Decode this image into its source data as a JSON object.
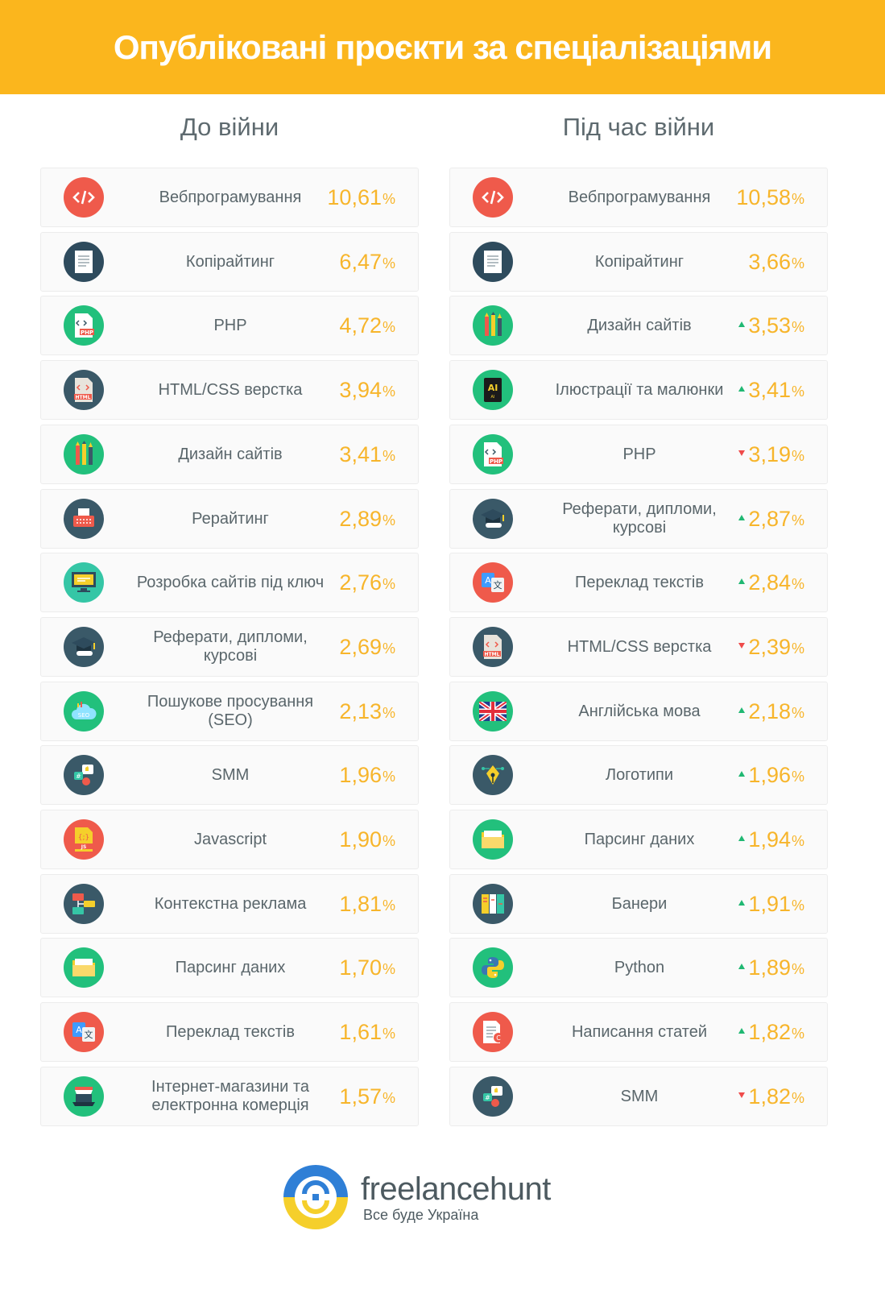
{
  "header": {
    "title": "Опубліковані проєкти за спеціалізаціями"
  },
  "colors": {
    "header_bg": "#fbb61d",
    "value": "#f7b52b",
    "up": "#1fb872",
    "down": "#ef4a4a"
  },
  "chart_data": {
    "type": "table",
    "unit": "%",
    "columns": [
      {
        "title": "До війни",
        "rows": [
          {
            "label": "Вебпрограмування",
            "value": "10,61",
            "icon": "code-icon",
            "icon_bg": "#ef5a4b"
          },
          {
            "label": "Копірайтинг",
            "value": "6,47",
            "icon": "document-icon",
            "icon_bg": "#2e4b5d"
          },
          {
            "label": "PHP",
            "value": "4,72",
            "icon": "php-file-icon",
            "icon_bg": "#22c07c"
          },
          {
            "label": "HTML/CSS верстка",
            "value": "3,94",
            "icon": "html-file-icon",
            "icon_bg": "#3a5968"
          },
          {
            "label": "Дизайн сайтів",
            "value": "3,41",
            "icon": "pencils-icon",
            "icon_bg": "#22c07c"
          },
          {
            "label": "Рерайтинг",
            "value": "2,89",
            "icon": "typewriter-icon",
            "icon_bg": "#3a5968"
          },
          {
            "label": "Розробка сайтів під ключ",
            "value": "2,76",
            "icon": "monitor-icon",
            "icon_bg": "#35c6a6"
          },
          {
            "label": "Реферати, дипломи, курсові",
            "value": "2,69",
            "icon": "graduation-cap-icon",
            "icon_bg": "#3a5968"
          },
          {
            "label": "Пошукове просування (SEO)",
            "value": "2,13",
            "icon": "seo-cloud-icon",
            "icon_bg": "#22c07c"
          },
          {
            "label": "SMM",
            "value": "1,96",
            "icon": "social-media-icon",
            "icon_bg": "#3a5968"
          },
          {
            "label": "Javascript",
            "value": "1,90",
            "icon": "js-file-icon",
            "icon_bg": "#ef5a4b"
          },
          {
            "label": "Контекстна реклама",
            "value": "1,81",
            "icon": "ads-icon",
            "icon_bg": "#3a5968"
          },
          {
            "label": "Парсинг даних",
            "value": "1,70",
            "icon": "folder-icon",
            "icon_bg": "#22c07c"
          },
          {
            "label": "Переклад текстів",
            "value": "1,61",
            "icon": "translate-icon",
            "icon_bg": "#ef5a4b"
          },
          {
            "label": "Інтернет-магазини та електронна комерція",
            "value": "1,57",
            "icon": "shop-icon",
            "icon_bg": "#22c07c"
          }
        ]
      },
      {
        "title": "Під час війни",
        "rows": [
          {
            "label": "Вебпрограмування",
            "value": "10,58",
            "trend": "",
            "icon": "code-icon",
            "icon_bg": "#ef5a4b"
          },
          {
            "label": "Копірайтинг",
            "value": "3,66",
            "trend": "",
            "icon": "document-icon",
            "icon_bg": "#2e4b5d"
          },
          {
            "label": "Дизайн сайтів",
            "value": "3,53",
            "trend": "up",
            "icon": "pencils-icon",
            "icon_bg": "#22c07c"
          },
          {
            "label": "Ілюстрації та малюнки",
            "value": "3,41",
            "trend": "up",
            "icon": "ai-file-icon",
            "icon_bg": "#22c07c"
          },
          {
            "label": "PHP",
            "value": "3,19",
            "trend": "down",
            "icon": "php-file-icon",
            "icon_bg": "#22c07c"
          },
          {
            "label": "Реферати, дипломи, курсові",
            "value": "2,87",
            "trend": "up",
            "icon": "graduation-cap-icon",
            "icon_bg": "#3a5968"
          },
          {
            "label": "Переклад текстів",
            "value": "2,84",
            "trend": "up",
            "icon": "translate-icon",
            "icon_bg": "#ef5a4b"
          },
          {
            "label": "HTML/CSS верстка",
            "value": "2,39",
            "trend": "down",
            "icon": "html-file-icon",
            "icon_bg": "#3a5968"
          },
          {
            "label": "Англійська мова",
            "value": "2,18",
            "trend": "up",
            "icon": "uk-flag-icon",
            "icon_bg": "#22c07c"
          },
          {
            "label": "Логотипи",
            "value": "1,96",
            "trend": "up",
            "icon": "pen-nib-icon",
            "icon_bg": "#3a5968"
          },
          {
            "label": "Парсинг даних",
            "value": "1,94",
            "trend": "up",
            "icon": "folder-icon",
            "icon_bg": "#22c07c"
          },
          {
            "label": "Банери",
            "value": "1,91",
            "trend": "up",
            "icon": "banners-icon",
            "icon_bg": "#3a5968"
          },
          {
            "label": "Python",
            "value": "1,89",
            "trend": "up",
            "icon": "python-icon",
            "icon_bg": "#22c07c"
          },
          {
            "label": "Написання статей",
            "value": "1,82",
            "trend": "up",
            "icon": "article-icon",
            "icon_bg": "#ef5a4b"
          },
          {
            "label": "SMM",
            "value": "1,82",
            "trend": "down",
            "icon": "social-media-icon",
            "icon_bg": "#3a5968"
          }
        ]
      }
    ]
  },
  "footer": {
    "brand": "freelancehunt",
    "tagline": "Все буде Україна"
  }
}
